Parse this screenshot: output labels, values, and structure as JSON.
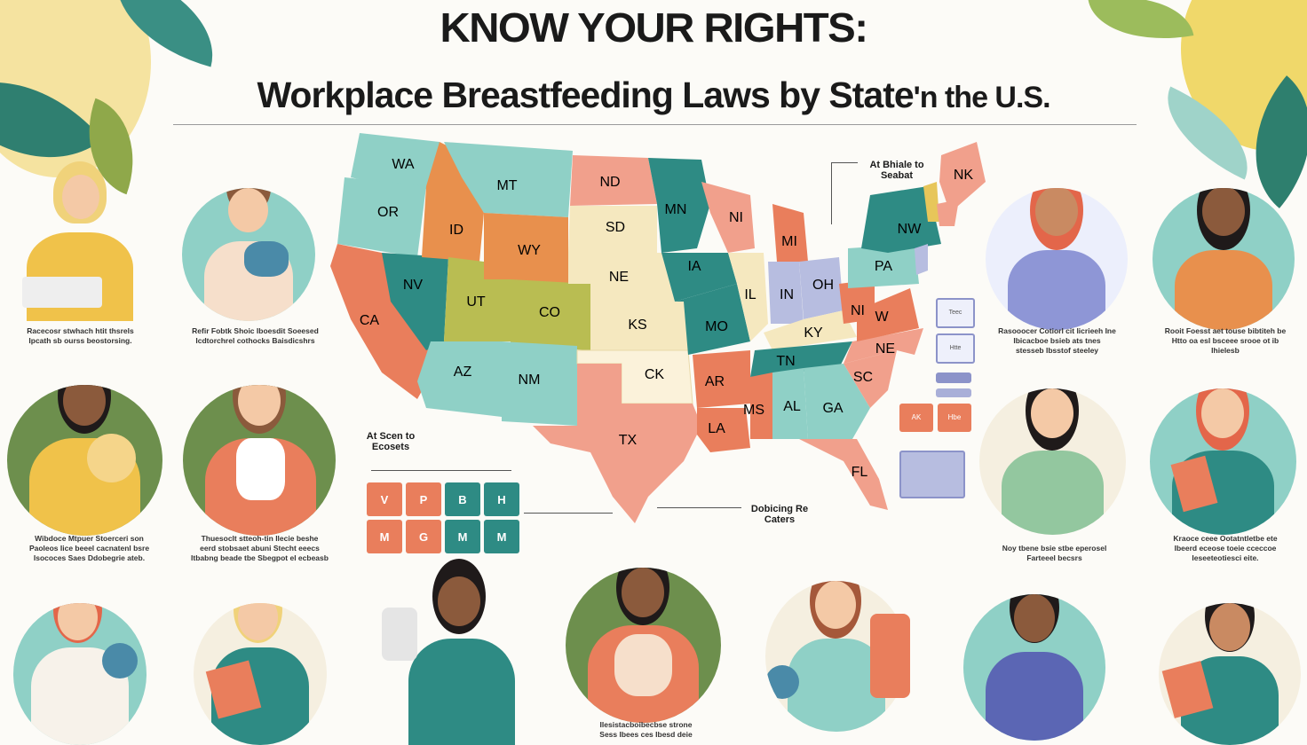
{
  "header": {
    "title": "KNOW YOUR RIGHTS:",
    "subtitle_main": "Workplace Breastfeeding Laws by State",
    "subtitle_tail": "'n the U.S."
  },
  "map": {
    "states": [
      "WA",
      "OR",
      "CA",
      "NV",
      "ID",
      "MT",
      "WY",
      "UT",
      "AZ",
      "NM",
      "CO",
      "ND",
      "SD",
      "NE",
      "KS",
      "CK",
      "TX",
      "MN",
      "IA",
      "MO",
      "AR",
      "LA",
      "IL",
      "IN",
      "OH",
      "KY",
      "TN",
      "MS",
      "AL",
      "GA",
      "SC",
      "NE",
      "FL",
      "PA",
      "NW",
      "W",
      "NI",
      "MI",
      "NK",
      "NI"
    ],
    "callout_top": "At Bhiale to\nSeabat",
    "callout_left": "At Scen to\nEcosets",
    "callout_bottom": "Dobicing Re\nCaters"
  },
  "legend_tiles": {
    "row1": [
      "V",
      "P",
      "B",
      "H"
    ],
    "row2": [
      "M",
      "G",
      "M",
      "M"
    ]
  },
  "colors": {
    "teal": "#2e8b84",
    "light_teal": "#8fd0c6",
    "salmon": "#f1a08c",
    "coral": "#e97e5c",
    "orange": "#e8904d",
    "olive": "#b9bd52",
    "cream": "#f5e8bf",
    "periwinkle": "#b7bde0",
    "mustard": "#e7c65a",
    "green": "#6d8f4d"
  },
  "captions": {
    "p1": "Racecosr stwhach htit thsrels\nIpcath sb ourss beostorsing.",
    "p2": "Refir Fobtk Shoic Iboesdit Soeesed\nIcdtorchrel cothocks Baisdicshrs",
    "p3": "Wibdoce Mtpuer Stoerceri son\nPaoleos Iice beeel cacnatenl bsre\nIsococes Saes Ddobegrie ateb.",
    "p4": "Thuesoclt stteoh-tin Ilecie beshe\neerd stobsaet abuni Stecht eeecs\nItbabng beade tbe Sbegpot el ecbeasb",
    "p5": "Rasooocer Cotiorl cit licrieeh Ine\nIbicacboe bsieb ats tnes\nstesseb Ibsstof steeley",
    "p6": "Rooit Foesst aet touse bibtiteh be\nHtto oa esl bsceee srooe ot ib\nIhielesb",
    "p7": "Noy tbene bsie stbe eperosel\nFarteeel becsrs",
    "p8": "Kraoce ceee Ootatntletbe ete\nIbeerd eceose toeie cceccoe\nIeseeteotiesci eite.",
    "p9": "Ilesistacboibecbse strone\nSess Ibees ces Ibesd deie"
  },
  "side_buttons": [
    "Teec",
    "Htte",
    "",
    "",
    "AK",
    "Hbe"
  ]
}
